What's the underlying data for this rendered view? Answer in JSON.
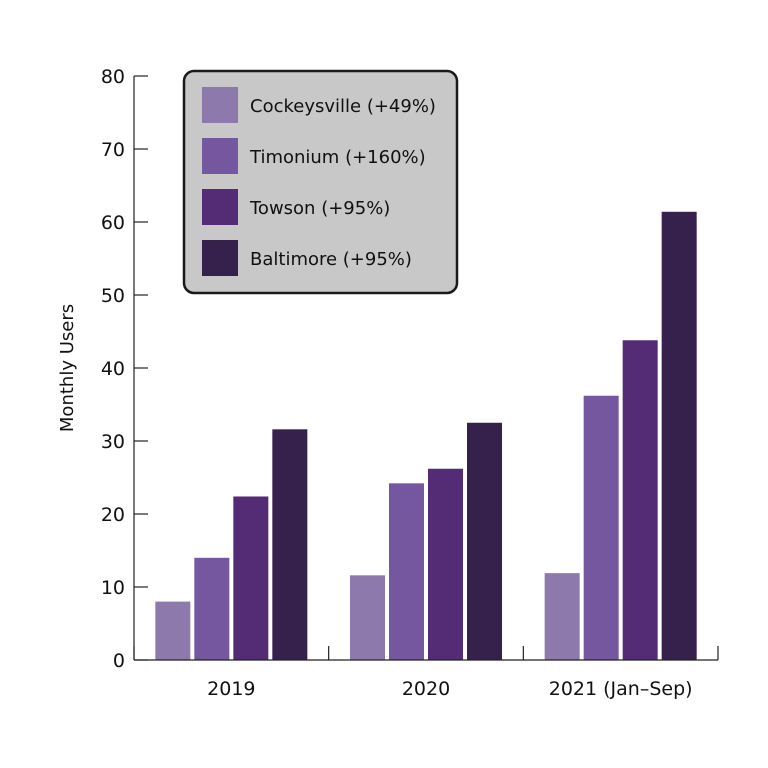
{
  "chart_data": {
    "type": "bar",
    "title": "",
    "xlabel": "",
    "ylabel": "Monthly Users",
    "categories": [
      "2019",
      "2020",
      "2021 (Jan–Sep)"
    ],
    "ylim": [
      0,
      80
    ],
    "yticks": [
      0,
      10,
      20,
      30,
      40,
      50,
      60,
      70,
      80
    ],
    "grid": false,
    "legend_position": "top-left",
    "series": [
      {
        "name": "Cockeysville (+49%)",
        "color": "#8e79ad",
        "values": [
          8.0,
          11.6,
          11.9
        ]
      },
      {
        "name": "Timonium (+160%)",
        "color": "#74579f",
        "values": [
          14.0,
          24.2,
          36.2
        ]
      },
      {
        "name": "Towson (+95%)",
        "color": "#532c75",
        "values": [
          22.4,
          26.2,
          43.8
        ]
      },
      {
        "name": "Baltimore (+95%)",
        "color": "#36214c",
        "values": [
          31.6,
          32.5,
          61.4
        ]
      }
    ]
  }
}
